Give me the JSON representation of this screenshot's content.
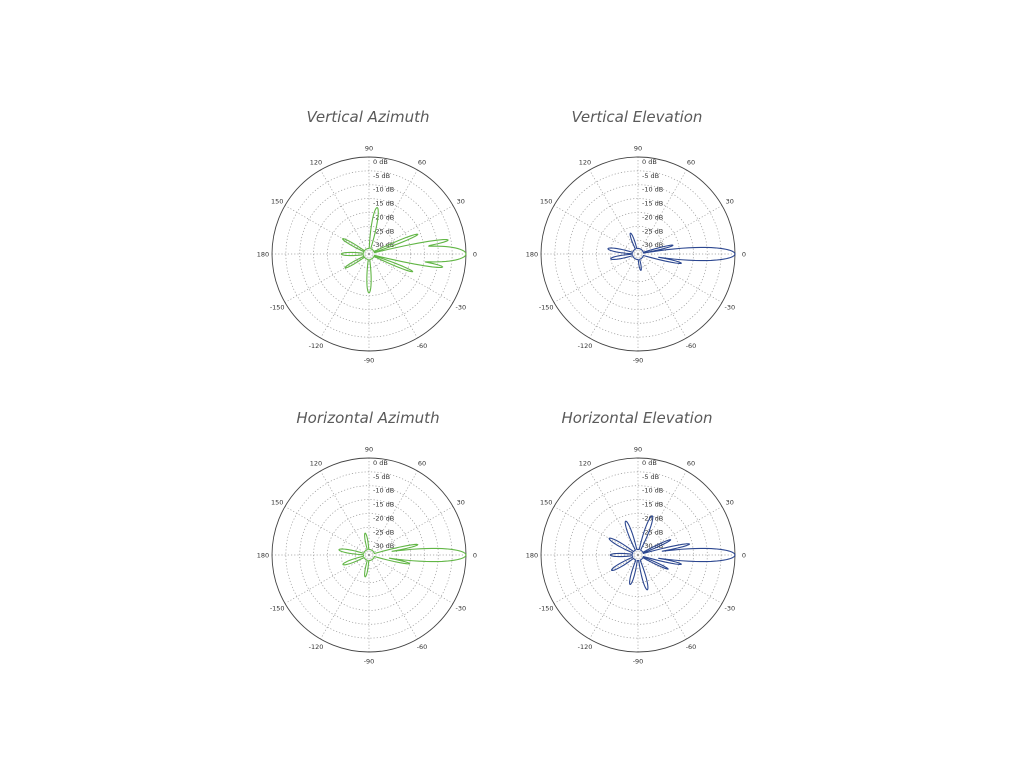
{
  "colors": {
    "green": "#62b646",
    "blue": "#2c4790",
    "grid": "#9a9a9a",
    "outline": "#444444"
  },
  "chart_data": [
    {
      "type": "polar",
      "title": "Vertical Azimuth",
      "color": "#62b646",
      "angle_labels": [
        "90",
        "60",
        "30",
        "0",
        "-30",
        "-60",
        "-90",
        "-120",
        "-150",
        "180",
        "150",
        "120"
      ],
      "radial_labels": [
        "0 dB",
        "-5 dB",
        "-10 dB",
        "-15 dB",
        "-20 dB",
        "-25 dB",
        "-30 dB"
      ],
      "radial_range_db": [
        -35,
        0
      ],
      "lobes": [
        {
          "center": 0,
          "peak": 0,
          "width": 12
        },
        {
          "center": 10,
          "peak": -6,
          "width": 4
        },
        {
          "center": -10,
          "peak": -8,
          "width": 4
        },
        {
          "center": 22,
          "peak": -16,
          "width": 4
        },
        {
          "center": -22,
          "peak": -18,
          "width": 4
        },
        {
          "center": 80,
          "peak": -18,
          "width": 8
        },
        {
          "center": -90,
          "peak": -21,
          "width": 8
        },
        {
          "center": 150,
          "peak": -24,
          "width": 6
        },
        {
          "center": 180,
          "peak": -25,
          "width": 8
        },
        {
          "center": -150,
          "peak": -25,
          "width": 6
        }
      ]
    },
    {
      "type": "polar",
      "title": "Vertical Elevation",
      "color": "#2c4790",
      "angle_labels": [
        "90",
        "60",
        "30",
        "0",
        "-30",
        "-60",
        "-90",
        "-120",
        "-150",
        "180",
        "150",
        "120"
      ],
      "radial_labels": [
        "0 dB",
        "-5 dB",
        "-10 dB",
        "-15 dB",
        "-20 dB",
        "-25 dB",
        "-30 dB"
      ],
      "radial_range_db": [
        -35,
        0
      ],
      "lobes": [
        {
          "center": 0,
          "peak": 0,
          "width": 10
        },
        {
          "center": -12,
          "peak": -19,
          "width": 4
        },
        {
          "center": 14,
          "peak": -22,
          "width": 4
        },
        {
          "center": 170,
          "peak": -24,
          "width": 8
        },
        {
          "center": -170,
          "peak": -25,
          "width": 8
        },
        {
          "center": 110,
          "peak": -27,
          "width": 8
        },
        {
          "center": -80,
          "peak": -29,
          "width": 8
        }
      ]
    },
    {
      "type": "polar",
      "title": "Horizontal Azimuth",
      "color": "#62b646",
      "angle_labels": [
        "90",
        "60",
        "30",
        "0",
        "-30",
        "-60",
        "-90",
        "-120",
        "-150",
        "180",
        "150",
        "120"
      ],
      "radial_labels": [
        "0 dB",
        "-5 dB",
        "-10 dB",
        "-15 dB",
        "-20 dB",
        "-25 dB",
        "-30 dB"
      ],
      "radial_range_db": [
        -35,
        0
      ],
      "lobes": [
        {
          "center": 0,
          "peak": 0,
          "width": 10
        },
        {
          "center": 12,
          "peak": -17,
          "width": 4
        },
        {
          "center": -12,
          "peak": -20,
          "width": 4
        },
        {
          "center": 170,
          "peak": -24,
          "width": 8
        },
        {
          "center": -160,
          "peak": -25,
          "width": 8
        },
        {
          "center": 100,
          "peak": -27,
          "width": 8
        },
        {
          "center": -100,
          "peak": -27,
          "width": 8
        }
      ]
    },
    {
      "type": "polar",
      "title": "Horizontal Elevation",
      "color": "#2c4790",
      "angle_labels": [
        "90",
        "60",
        "30",
        "0",
        "-30",
        "-60",
        "-90",
        "-120",
        "-150",
        "180",
        "150",
        "120"
      ],
      "radial_labels": [
        "0 dB",
        "-5 dB",
        "-10 dB",
        "-15 dB",
        "-20 dB",
        "-25 dB",
        "-30 dB"
      ],
      "radial_range_db": [
        -35,
        0
      ],
      "lobes": [
        {
          "center": 0,
          "peak": 0,
          "width": 10
        },
        {
          "center": 12,
          "peak": -16,
          "width": 4
        },
        {
          "center": -12,
          "peak": -19,
          "width": 4
        },
        {
          "center": 25,
          "peak": -22,
          "width": 4
        },
        {
          "center": -25,
          "peak": -23,
          "width": 4
        },
        {
          "center": 70,
          "peak": -20,
          "width": 8
        },
        {
          "center": 110,
          "peak": -22,
          "width": 8
        },
        {
          "center": -75,
          "peak": -22,
          "width": 8
        },
        {
          "center": -105,
          "peak": -24,
          "width": 8
        },
        {
          "center": 150,
          "peak": -23,
          "width": 8
        },
        {
          "center": -150,
          "peak": -24,
          "width": 8
        },
        {
          "center": 180,
          "peak": -25,
          "width": 8
        }
      ]
    }
  ]
}
